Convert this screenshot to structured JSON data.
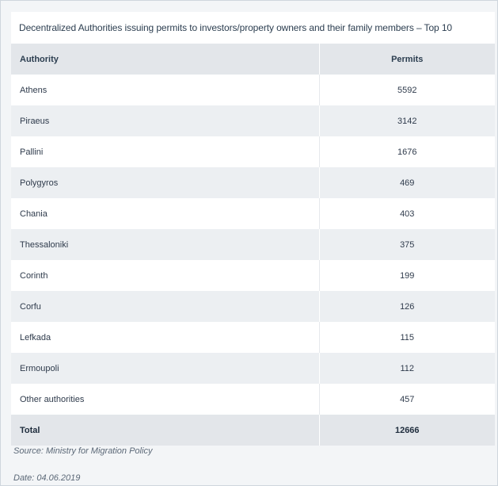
{
  "title": "Decentralized Authorities issuing permits to investors/property owners and their family members – Top 10",
  "table": {
    "headers": {
      "authority": "Authority",
      "permits": "Permits"
    },
    "rows": [
      {
        "authority": "Athens",
        "permits": "5592"
      },
      {
        "authority": "Piraeus",
        "permits": "3142"
      },
      {
        "authority": "Pallini",
        "permits": "1676"
      },
      {
        "authority": "Polygyros",
        "permits": "469"
      },
      {
        "authority": "Chania",
        "permits": "403"
      },
      {
        "authority": "Thessaloniki",
        "permits": "375"
      },
      {
        "authority": "Corinth",
        "permits": "199"
      },
      {
        "authority": "Corfu",
        "permits": "126"
      },
      {
        "authority": "Lefkada",
        "permits": "115"
      },
      {
        "authority": "Ermoupoli",
        "permits": "112"
      },
      {
        "authority": "Other authorities",
        "permits": "457"
      }
    ],
    "total": {
      "authority": "Total",
      "permits": "12666"
    }
  },
  "source": "Source: Ministry for Migration Policy",
  "date": "Date: 04.06.2019",
  "colors": {
    "header_bg": "#e3e6ea",
    "odd_row_bg": "#ffffff",
    "even_row_bg": "#eceff2",
    "text": "#2f3b4c"
  }
}
